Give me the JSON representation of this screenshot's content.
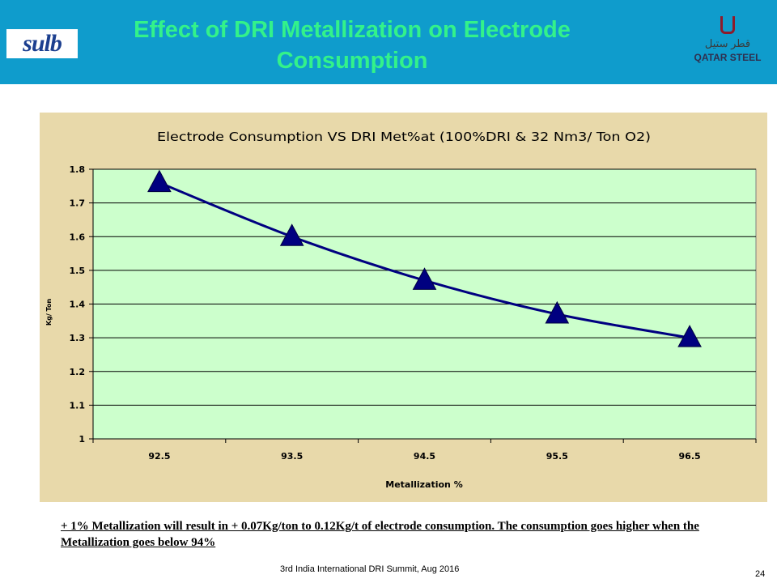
{
  "slide": {
    "title": "Effect of DRI Metallization on Electrode Consumption",
    "logo_left_text": "sulb",
    "logo_right_arabic": "قطر ستيل",
    "logo_right_text": "QATAR STEEL",
    "note": "+ 1% Metallization will result in + 0.07Kg/ton to 0.12Kg/t of electrode consumption. The consumption goes higher when the Metallization goes below 94%",
    "footer": "3rd India International DRI Summit, Aug 2016",
    "page_number": "24"
  },
  "colors": {
    "header_bg": "#0f9ccc",
    "title_text": "#33f28a",
    "chart_bg": "#e8d9a8",
    "plot_bg": "#ccffcc",
    "series": "#000080"
  },
  "chart_data": {
    "type": "line",
    "title": "Electrode Consumption VS DRI Met%at (100%DRI & 32 Nm3/ Ton O2)",
    "xlabel": "Metallization %",
    "ylabel": "Kg/ Ton",
    "categories": [
      "92.5",
      "93.5",
      "94.5",
      "95.5",
      "96.5"
    ],
    "series": [
      {
        "name": "",
        "marker": "triangle",
        "values": [
          1.76,
          1.6,
          1.47,
          1.37,
          1.3
        ]
      }
    ],
    "ylim": [
      1,
      1.8
    ],
    "yticks": [
      "1",
      "1.1",
      "1.2",
      "1.3",
      "1.4",
      "1.5",
      "1.6",
      "1.7",
      "1.8"
    ],
    "grid": true,
    "legend": "none"
  }
}
